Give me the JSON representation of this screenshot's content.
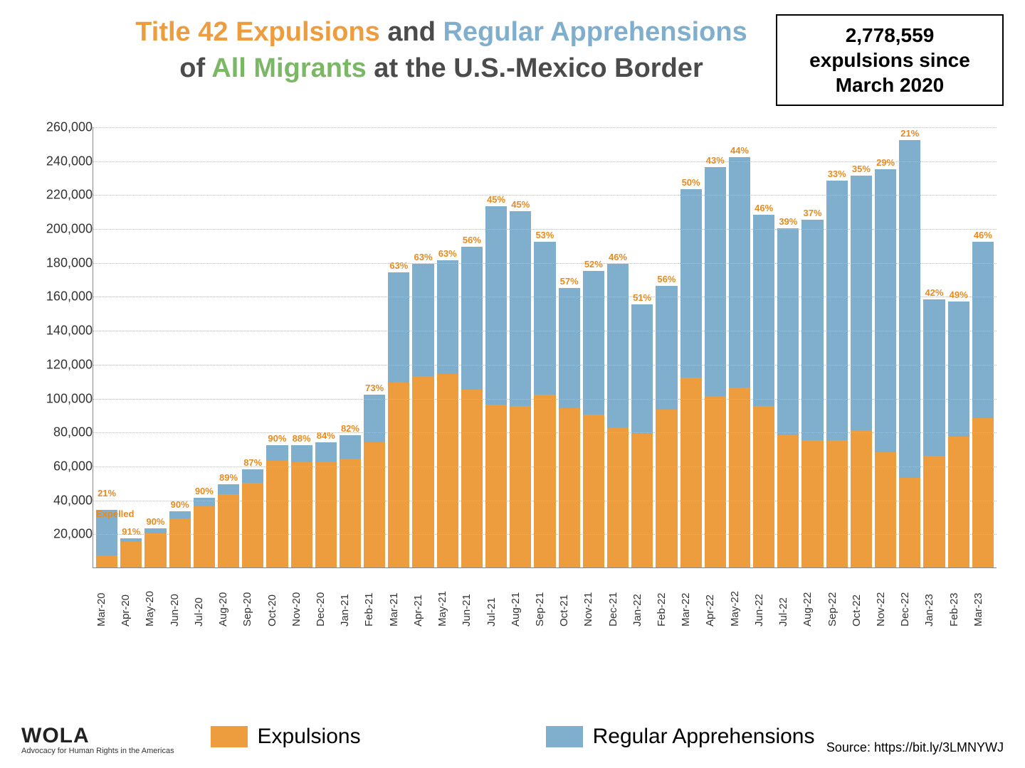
{
  "colors": {
    "expulsions": "#ee9d3e",
    "apprehensions": "#80aecd",
    "title_dark": "#4b4b4b",
    "title_green": "#7cb766",
    "pct_label": "#e88a1e"
  },
  "title": {
    "part1": "Title 42 Expulsions",
    "part2": " and ",
    "part3": "Regular Apprehensions",
    "line2_a": "of ",
    "line2_b": "All Migrants",
    "line2_c": " at the U.S.-Mexico Border"
  },
  "callout": {
    "line1": "2,778,559",
    "line2": "expulsions since",
    "line3": "March 2020"
  },
  "chart": {
    "type": "stacked-bar",
    "y_max": 260000,
    "y_ticks": [
      20000,
      40000,
      60000,
      80000,
      100000,
      120000,
      140000,
      160000,
      180000,
      200000,
      220000,
      240000,
      260000
    ],
    "y_tick_labels": [
      "20,000",
      "40,000",
      "60,000",
      "80,000",
      "100,000",
      "120,000",
      "140,000",
      "160,000",
      "180,000",
      "200,000",
      "220,000",
      "240,000",
      "260,000"
    ],
    "expelled_note": "Expelled",
    "series_names": {
      "a": "Expulsions",
      "b": "Regular Apprehensions"
    },
    "months": [
      {
        "label": "Mar-20",
        "exp": 7000,
        "app": 27000,
        "pct": "21%"
      },
      {
        "label": "Apr-20",
        "exp": 15000,
        "app": 2000,
        "pct": "91%"
      },
      {
        "label": "May-20",
        "exp": 20000,
        "app": 3000,
        "pct": "90%"
      },
      {
        "label": "Jun-20",
        "exp": 29000,
        "app": 4000,
        "pct": "90%"
      },
      {
        "label": "Jul-20",
        "exp": 36000,
        "app": 5000,
        "pct": "90%"
      },
      {
        "label": "Aug-20",
        "exp": 43000,
        "app": 6000,
        "pct": "89%"
      },
      {
        "label": "Sep-20",
        "exp": 50000,
        "app": 8000,
        "pct": "87%"
      },
      {
        "label": "Oct-20",
        "exp": 63000,
        "app": 9000,
        "pct": "90%"
      },
      {
        "label": "Nov-20",
        "exp": 62000,
        "app": 10000,
        "pct": "88%"
      },
      {
        "label": "Dec-20",
        "exp": 62000,
        "app": 12000,
        "pct": "84%"
      },
      {
        "label": "Jan-21",
        "exp": 64000,
        "app": 14000,
        "pct": "82%"
      },
      {
        "label": "Feb-21",
        "exp": 74000,
        "app": 28000,
        "pct": "73%"
      },
      {
        "label": "Mar-21",
        "exp": 109000,
        "app": 65000,
        "pct": "63%"
      },
      {
        "label": "Apr-21",
        "exp": 113000,
        "app": 66000,
        "pct": "63%"
      },
      {
        "label": "May-21",
        "exp": 114000,
        "app": 67000,
        "pct": "63%"
      },
      {
        "label": "Jun-21",
        "exp": 105000,
        "app": 84000,
        "pct": "56%"
      },
      {
        "label": "Jul-21",
        "exp": 96000,
        "app": 117000,
        "pct": "45%"
      },
      {
        "label": "Aug-21",
        "exp": 95000,
        "app": 115000,
        "pct": "45%"
      },
      {
        "label": "Sep-21",
        "exp": 102000,
        "app": 90000,
        "pct": "53%"
      },
      {
        "label": "Oct-21",
        "exp": 94000,
        "app": 71000,
        "pct": "57%"
      },
      {
        "label": "Nov-21",
        "exp": 90000,
        "app": 85000,
        "pct": "52%"
      },
      {
        "label": "Dec-21",
        "exp": 82000,
        "app": 97000,
        "pct": "46%"
      },
      {
        "label": "Jan-22",
        "exp": 79000,
        "app": 76000,
        "pct": "51%"
      },
      {
        "label": "Feb-22",
        "exp": 93000,
        "app": 73000,
        "pct": "56%"
      },
      {
        "label": "Mar-22",
        "exp": 112000,
        "app": 111000,
        "pct": "50%"
      },
      {
        "label": "Apr-22",
        "exp": 101000,
        "app": 135000,
        "pct": "43%"
      },
      {
        "label": "May-22",
        "exp": 106000,
        "app": 136000,
        "pct": "44%"
      },
      {
        "label": "Jun-22",
        "exp": 95000,
        "app": 113000,
        "pct": "46%"
      },
      {
        "label": "Jul-22",
        "exp": 78000,
        "app": 122000,
        "pct": "39%"
      },
      {
        "label": "Aug-22",
        "exp": 75000,
        "app": 130000,
        "pct": "37%"
      },
      {
        "label": "Sep-22",
        "exp": 75000,
        "app": 153000,
        "pct": "33%"
      },
      {
        "label": "Oct-22",
        "exp": 81000,
        "app": 150000,
        "pct": "35%"
      },
      {
        "label": "Nov-22",
        "exp": 68000,
        "app": 167000,
        "pct": "29%"
      },
      {
        "label": "Dec-22",
        "exp": 53000,
        "app": 199000,
        "pct": "21%"
      },
      {
        "label": "Jan-23",
        "exp": 66000,
        "app": 92000,
        "pct": "42%"
      },
      {
        "label": "Feb-23",
        "exp": 77000,
        "app": 80000,
        "pct": "49%"
      },
      {
        "label": "Mar-23",
        "exp": 88000,
        "app": 104000,
        "pct": "46%"
      }
    ]
  },
  "legend": {
    "a": "Expulsions",
    "b": "Regular Apprehensions"
  },
  "logo": {
    "name": "WOLA",
    "sub": "Advocacy for Human Rights in the Americas"
  },
  "source": "Source: https://bit.ly/3LMNYWJ"
}
